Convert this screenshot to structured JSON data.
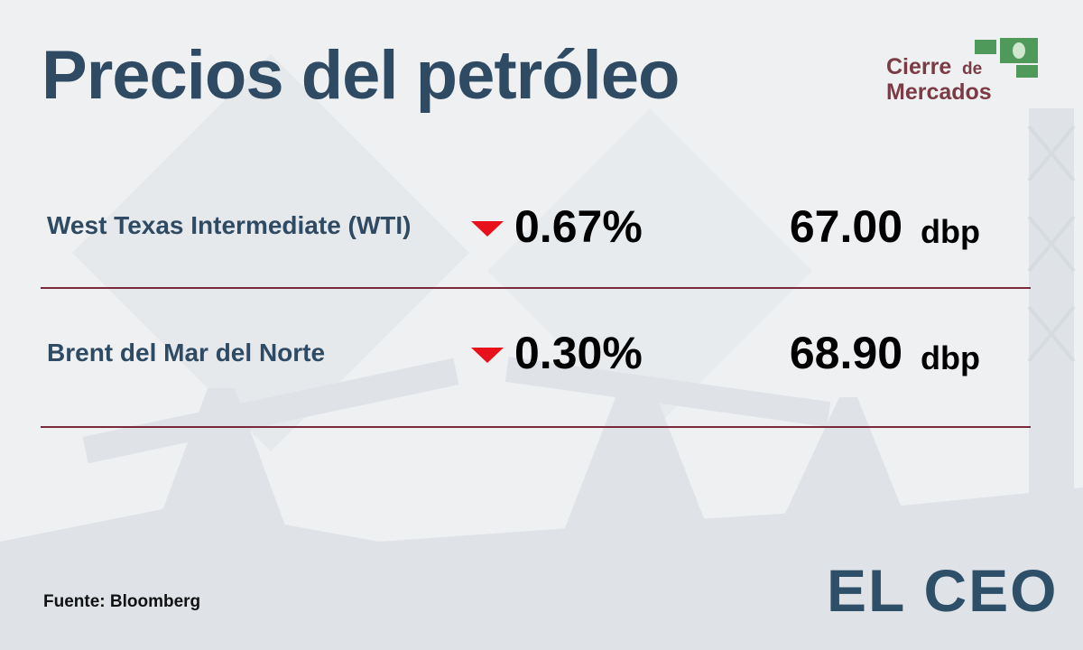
{
  "header": {
    "title": "Precios del petróleo",
    "badge": [
      "Cierre",
      "de",
      "Mercados"
    ]
  },
  "table": {
    "rows": [
      [
        "West Texas Intermediate (WTI)",
        "0.67%",
        "67.00",
        "dbp"
      ],
      [
        "Brent del Mar del Norte",
        "0.30%",
        "68.90",
        "dbp"
      ]
    ]
  },
  "footer": {
    "source": "Fuente: Bloomberg",
    "logo": "EL CEO"
  }
}
